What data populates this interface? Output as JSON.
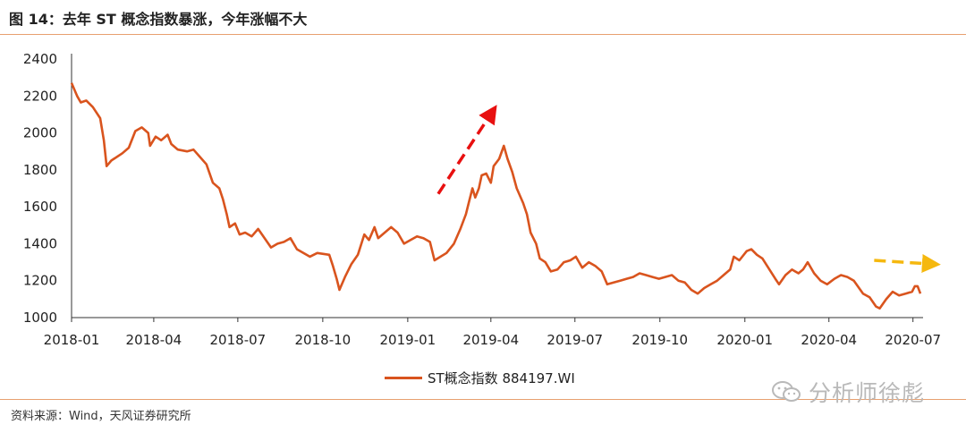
{
  "header": {
    "title": "图 14：去年 ST 概念指数暴涨，今年涨幅不大"
  },
  "chart_data": {
    "type": "line",
    "x_tick_labels": [
      "2018-01",
      "2018-04",
      "2018-07",
      "2018-10",
      "2019-01",
      "2019-04",
      "2019-07",
      "2019-10",
      "2020-01",
      "2020-04",
      "2020-07"
    ],
    "y_ticks": [
      1000,
      1200,
      1400,
      1600,
      1800,
      2000,
      2200,
      2400
    ],
    "ylim": [
      1000,
      2400
    ],
    "xlim": [
      "2018-01-02",
      "2020-07-10"
    ],
    "legend_position": "bottom-center",
    "series": [
      {
        "name": "ST概念指数 884197.WI",
        "color": "#d9541e",
        "points": [
          [
            "2018-01-02",
            2270
          ],
          [
            "2018-01-08",
            2200
          ],
          [
            "2018-01-12",
            2165
          ],
          [
            "2018-01-18",
            2175
          ],
          [
            "2018-01-25",
            2140
          ],
          [
            "2018-02-02",
            2080
          ],
          [
            "2018-02-06",
            1960
          ],
          [
            "2018-02-09",
            1820
          ],
          [
            "2018-02-14",
            1850
          ],
          [
            "2018-02-26",
            1890
          ],
          [
            "2018-03-05",
            1920
          ],
          [
            "2018-03-12",
            2010
          ],
          [
            "2018-03-19",
            2030
          ],
          [
            "2018-03-26",
            2000
          ],
          [
            "2018-03-28",
            1930
          ],
          [
            "2018-04-03",
            1980
          ],
          [
            "2018-04-09",
            1960
          ],
          [
            "2018-04-16",
            1990
          ],
          [
            "2018-04-20",
            1940
          ],
          [
            "2018-04-27",
            1910
          ],
          [
            "2018-05-07",
            1900
          ],
          [
            "2018-05-14",
            1910
          ],
          [
            "2018-05-21",
            1870
          ],
          [
            "2018-05-28",
            1830
          ],
          [
            "2018-06-04",
            1730
          ],
          [
            "2018-06-11",
            1700
          ],
          [
            "2018-06-15",
            1640
          ],
          [
            "2018-06-19",
            1560
          ],
          [
            "2018-06-22",
            1490
          ],
          [
            "2018-06-28",
            1510
          ],
          [
            "2018-07-03",
            1450
          ],
          [
            "2018-07-09",
            1460
          ],
          [
            "2018-07-16",
            1440
          ],
          [
            "2018-07-23",
            1480
          ],
          [
            "2018-07-30",
            1430
          ],
          [
            "2018-08-06",
            1380
          ],
          [
            "2018-08-13",
            1400
          ],
          [
            "2018-08-20",
            1410
          ],
          [
            "2018-08-27",
            1430
          ],
          [
            "2018-09-03",
            1370
          ],
          [
            "2018-09-10",
            1350
          ],
          [
            "2018-09-17",
            1330
          ],
          [
            "2018-09-25",
            1350
          ],
          [
            "2018-10-08",
            1340
          ],
          [
            "2018-10-12",
            1280
          ],
          [
            "2018-10-16",
            1210
          ],
          [
            "2018-10-19",
            1150
          ],
          [
            "2018-10-25",
            1220
          ],
          [
            "2018-11-01",
            1290
          ],
          [
            "2018-11-08",
            1340
          ],
          [
            "2018-11-15",
            1450
          ],
          [
            "2018-11-20",
            1420
          ],
          [
            "2018-11-26",
            1490
          ],
          [
            "2018-11-30",
            1430
          ],
          [
            "2018-12-07",
            1460
          ],
          [
            "2018-12-14",
            1490
          ],
          [
            "2018-12-21",
            1460
          ],
          [
            "2018-12-28",
            1400
          ],
          [
            "2019-01-04",
            1420
          ],
          [
            "2019-01-11",
            1440
          ],
          [
            "2019-01-18",
            1430
          ],
          [
            "2019-01-25",
            1410
          ],
          [
            "2019-01-30",
            1310
          ],
          [
            "2019-02-12",
            1350
          ],
          [
            "2019-02-20",
            1400
          ],
          [
            "2019-02-27",
            1480
          ],
          [
            "2019-03-05",
            1560
          ],
          [
            "2019-03-08",
            1620
          ],
          [
            "2019-03-12",
            1700
          ],
          [
            "2019-03-15",
            1650
          ],
          [
            "2019-03-19",
            1700
          ],
          [
            "2019-03-22",
            1770
          ],
          [
            "2019-03-27",
            1780
          ],
          [
            "2019-04-01",
            1730
          ],
          [
            "2019-04-04",
            1820
          ],
          [
            "2019-04-10",
            1860
          ],
          [
            "2019-04-15",
            1930
          ],
          [
            "2019-04-19",
            1860
          ],
          [
            "2019-04-24",
            1790
          ],
          [
            "2019-04-29",
            1700
          ],
          [
            "2019-05-06",
            1620
          ],
          [
            "2019-05-10",
            1560
          ],
          [
            "2019-05-14",
            1460
          ],
          [
            "2019-05-20",
            1400
          ],
          [
            "2019-05-24",
            1320
          ],
          [
            "2019-05-30",
            1300
          ],
          [
            "2019-06-05",
            1250
          ],
          [
            "2019-06-12",
            1260
          ],
          [
            "2019-06-19",
            1300
          ],
          [
            "2019-06-26",
            1310
          ],
          [
            "2019-07-02",
            1330
          ],
          [
            "2019-07-09",
            1270
          ],
          [
            "2019-07-16",
            1300
          ],
          [
            "2019-07-23",
            1280
          ],
          [
            "2019-07-30",
            1250
          ],
          [
            "2019-08-05",
            1180
          ],
          [
            "2019-08-12",
            1190
          ],
          [
            "2019-08-19",
            1200
          ],
          [
            "2019-08-26",
            1210
          ],
          [
            "2019-09-02",
            1220
          ],
          [
            "2019-09-09",
            1240
          ],
          [
            "2019-09-16",
            1230
          ],
          [
            "2019-09-23",
            1220
          ],
          [
            "2019-09-30",
            1210
          ],
          [
            "2019-10-14",
            1230
          ],
          [
            "2019-10-21",
            1200
          ],
          [
            "2019-10-28",
            1190
          ],
          [
            "2019-11-04",
            1150
          ],
          [
            "2019-11-11",
            1130
          ],
          [
            "2019-11-18",
            1160
          ],
          [
            "2019-11-25",
            1180
          ],
          [
            "2019-12-02",
            1200
          ],
          [
            "2019-12-09",
            1230
          ],
          [
            "2019-12-16",
            1260
          ],
          [
            "2019-12-20",
            1330
          ],
          [
            "2019-12-26",
            1310
          ],
          [
            "2020-01-03",
            1360
          ],
          [
            "2020-01-08",
            1370
          ],
          [
            "2020-01-14",
            1340
          ],
          [
            "2020-01-20",
            1320
          ],
          [
            "2020-02-03",
            1210
          ],
          [
            "2020-02-07",
            1180
          ],
          [
            "2020-02-14",
            1230
          ],
          [
            "2020-02-21",
            1260
          ],
          [
            "2020-02-28",
            1240
          ],
          [
            "2020-03-04",
            1260
          ],
          [
            "2020-03-09",
            1300
          ],
          [
            "2020-03-16",
            1240
          ],
          [
            "2020-03-23",
            1200
          ],
          [
            "2020-03-30",
            1180
          ],
          [
            "2020-04-07",
            1210
          ],
          [
            "2020-04-14",
            1230
          ],
          [
            "2020-04-21",
            1220
          ],
          [
            "2020-04-28",
            1200
          ],
          [
            "2020-05-08",
            1130
          ],
          [
            "2020-05-15",
            1110
          ],
          [
            "2020-05-22",
            1060
          ],
          [
            "2020-05-26",
            1050
          ],
          [
            "2020-06-02",
            1100
          ],
          [
            "2020-06-09",
            1140
          ],
          [
            "2020-06-16",
            1120
          ],
          [
            "2020-06-23",
            1130
          ],
          [
            "2020-06-30",
            1140
          ],
          [
            "2020-07-03",
            1170
          ],
          [
            "2020-07-06",
            1170
          ],
          [
            "2020-07-09",
            1130
          ]
        ]
      }
    ],
    "annotations": [
      {
        "kind": "dashed-arrow",
        "color": "#e81010",
        "from": [
          "2019-02-03",
          1670
        ],
        "to": [
          "2019-04-02",
          2110
        ]
      },
      {
        "kind": "dashed-arrow",
        "color": "#f5b80f",
        "from": [
          "2020-05-20",
          1310
        ],
        "to": [
          "2020-07-21",
          1290
        ]
      }
    ]
  },
  "footer": {
    "source": "资料来源：Wind，天风证券研究所"
  },
  "watermark": {
    "text": "分析师徐彪",
    "icon": "wechat-icon"
  }
}
